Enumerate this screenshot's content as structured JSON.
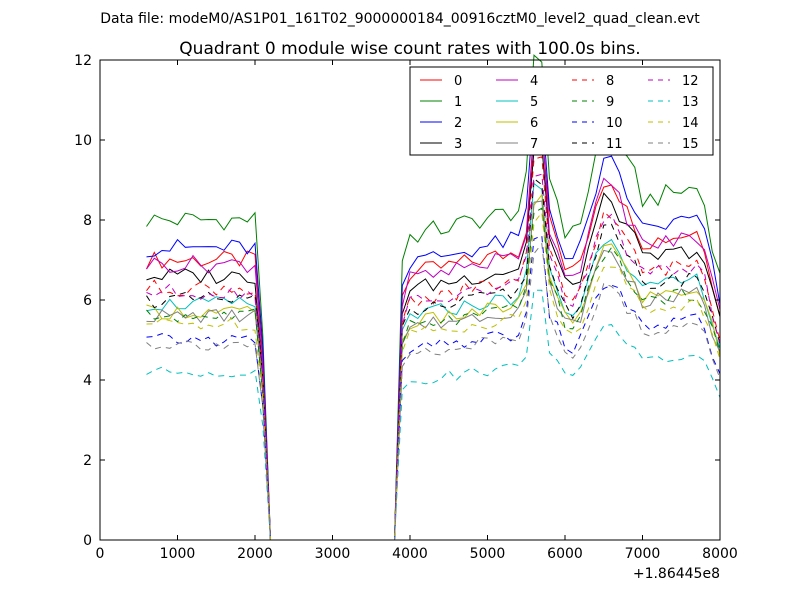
{
  "figure": {
    "suptitle": "Data file: modeM0/AS1P01_161T02_9000000184_00916cztM0_level2_quad_clean.evt"
  },
  "chart_data": {
    "type": "line",
    "title": "Quadrant 0 module wise count rates with 100.0s bins.",
    "xlabel": "",
    "ylabel": "",
    "x_offset_label": "+1.86445e8",
    "xlim": [
      0,
      8000
    ],
    "ylim": [
      0,
      12
    ],
    "xticks": [
      0,
      1000,
      2000,
      3000,
      4000,
      5000,
      6000,
      7000,
      8000
    ],
    "xtick_labels": [
      "0",
      "1000",
      "2000",
      "3000",
      "4000",
      "5000",
      "6000",
      "7000",
      "8000"
    ],
    "yticks": [
      0,
      2,
      4,
      6,
      8,
      10,
      12
    ],
    "ytick_labels": [
      "0",
      "2",
      "4",
      "6",
      "8",
      "10",
      "12"
    ],
    "grid": false,
    "legend": {
      "placement": "top-right",
      "columns": 4
    },
    "series": [
      {
        "name": "0",
        "color": "#ff0000",
        "style": "solid",
        "level": 7.0
      },
      {
        "name": "1",
        "color": "#008000",
        "style": "solid",
        "level": 8.0
      },
      {
        "name": "2",
        "color": "#0000ff",
        "style": "solid",
        "level": 7.3
      },
      {
        "name": "3",
        "color": "#000000",
        "style": "solid",
        "level": 6.6
      },
      {
        "name": "4",
        "color": "#bf00bf",
        "style": "solid",
        "level": 6.9
      },
      {
        "name": "5",
        "color": "#00bfbf",
        "style": "solid",
        "level": 5.9
      },
      {
        "name": "6",
        "color": "#bfbf00",
        "style": "solid",
        "level": 5.7
      },
      {
        "name": "7",
        "color": "#808080",
        "style": "solid",
        "level": 5.6
      },
      {
        "name": "8",
        "color": "#ff0000",
        "style": "dashed",
        "level": 6.3
      },
      {
        "name": "9",
        "color": "#008000",
        "style": "dashed",
        "level": 5.6
      },
      {
        "name": "10",
        "color": "#0000ff",
        "style": "dashed",
        "level": 5.0
      },
      {
        "name": "11",
        "color": "#000000",
        "style": "dashed",
        "level": 6.0
      },
      {
        "name": "12",
        "color": "#bf00bf",
        "style": "dashed",
        "level": 6.2
      },
      {
        "name": "13",
        "color": "#00bfbf",
        "style": "dashed",
        "level": 4.2
      },
      {
        "name": "14",
        "color": "#bfbf00",
        "style": "dashed",
        "level": 5.4
      },
      {
        "name": "15",
        "color": "#808080",
        "style": "dashed",
        "level": 4.9
      }
    ]
  }
}
